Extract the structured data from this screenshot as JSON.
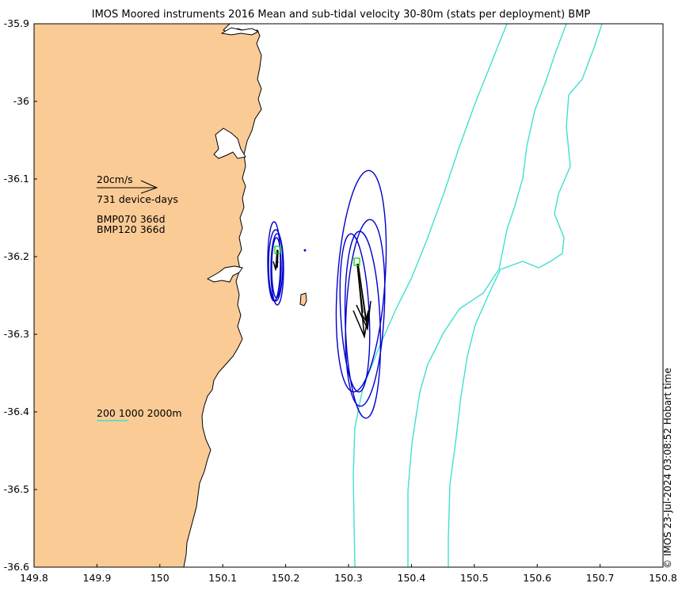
{
  "title": "IMOS Moored instruments 2016 Mean and sub-tidal velocity 30-80m (stats per deployment) BMP",
  "credit": "© IMOS 23-Jul-2024 03:08:52 Hobart time",
  "colors": {
    "land": "#fbcb96",
    "isobath": "#40e0d0",
    "ellipse": "#0000cd",
    "arrow": "#000000",
    "site": "#00cc00"
  },
  "axes": {
    "x_ticks": [
      "149.8",
      "149.9",
      "150",
      "150.1",
      "150.2",
      "150.3",
      "150.4",
      "150.5",
      "150.6",
      "150.7",
      "150.8"
    ],
    "y_ticks": [
      "-35.9",
      "-36",
      "-36.1",
      "-36.2",
      "-36.3",
      "-36.4",
      "-36.5",
      "-36.6"
    ],
    "xlim": [
      149.8,
      150.8
    ],
    "ylim": [
      -36.6,
      -35.9
    ]
  },
  "legend": {
    "scale_label": "20cm/s",
    "device_days": "731 device-days",
    "deployments": [
      "BMP070 366d",
      "BMP120 366d"
    ],
    "isobaths_label": "200 1000 2000m"
  },
  "sites": [
    {
      "name": "BMP070",
      "lon": 150.19,
      "lat": -36.193
    },
    {
      "name": "BMP120",
      "lon": 150.315,
      "lat": -36.207
    }
  ]
}
